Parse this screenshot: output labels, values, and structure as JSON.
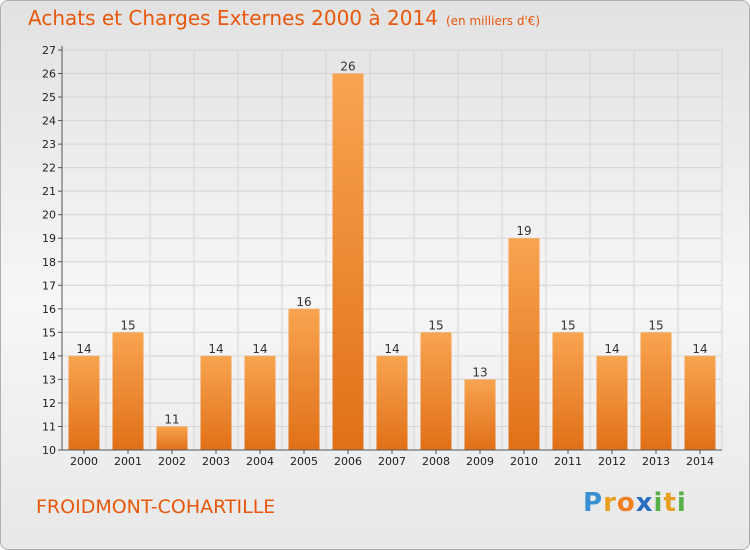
{
  "title": "Achats et Charges Externes 2000 à 2014",
  "unit": "(en milliers d'€)",
  "commune": "FROIDMONT-COHARTILLE",
  "logo": {
    "p1": "P",
    "p2": "r",
    "p3": "o",
    "p4": "x",
    "p5": "i",
    "p6": "t",
    "p7": "i"
  },
  "colors": {
    "bar_light": "#f8a450",
    "bar_dark": "#e07018",
    "title": "#e8580c"
  },
  "chart_data": {
    "type": "bar",
    "categories": [
      "2000",
      "2001",
      "2002",
      "2003",
      "2004",
      "2005",
      "2006",
      "2007",
      "2008",
      "2009",
      "2010",
      "2011",
      "2012",
      "2013",
      "2014"
    ],
    "values": [
      14,
      15,
      11,
      14,
      14,
      16,
      26,
      14,
      15,
      13,
      19,
      15,
      14,
      15,
      14
    ],
    "ylim": [
      10,
      27
    ],
    "yticks": [
      10,
      11,
      12,
      13,
      14,
      15,
      16,
      17,
      18,
      19,
      20,
      21,
      22,
      23,
      24,
      25,
      26,
      27
    ],
    "grid": true
  }
}
